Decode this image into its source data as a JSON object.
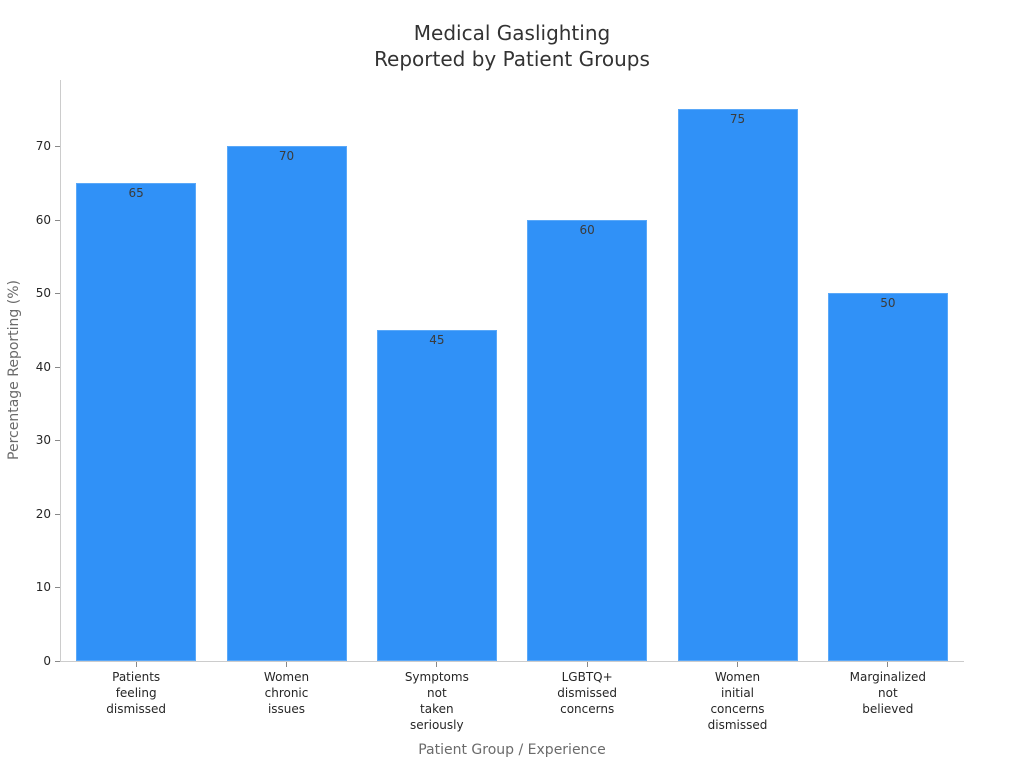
{
  "chart_data": {
    "type": "bar",
    "title": "Medical Gaslighting\nReported by Patient Groups",
    "title_lines": [
      "Medical Gaslighting",
      "Reported by Patient Groups"
    ],
    "xlabel": "Patient Group / Experience",
    "ylabel": "Percentage Reporting (%)",
    "categories": [
      "Patients feeling dismissed",
      "Women chronic issues",
      "Symptoms not taken seriously",
      "LGBTQ+ dismissed concerns",
      "Women initial concerns dismissed",
      "Marginalized not believed"
    ],
    "category_lines": [
      [
        "Patients",
        "feeling",
        "dismissed"
      ],
      [
        "Women",
        "chronic",
        "issues"
      ],
      [
        "Symptoms",
        "not",
        "taken",
        "seriously"
      ],
      [
        "LGBTQ+",
        "dismissed",
        "concerns"
      ],
      [
        "Women",
        "initial",
        "concerns",
        "dismissed"
      ],
      [
        "Marginalized",
        "not",
        "believed"
      ]
    ],
    "values": [
      65,
      70,
      45,
      60,
      75,
      50
    ],
    "value_labels": [
      "65",
      "70",
      "45",
      "60",
      "75",
      "50"
    ],
    "ylim": [
      0,
      79
    ],
    "yticks": [
      0,
      10,
      20,
      30,
      40,
      50,
      60,
      70
    ],
    "ytick_labels": [
      "0",
      "10",
      "20",
      "30",
      "40",
      "50",
      "60",
      "70"
    ],
    "grid": false,
    "legend": null,
    "bar_color": "#3091f7"
  }
}
